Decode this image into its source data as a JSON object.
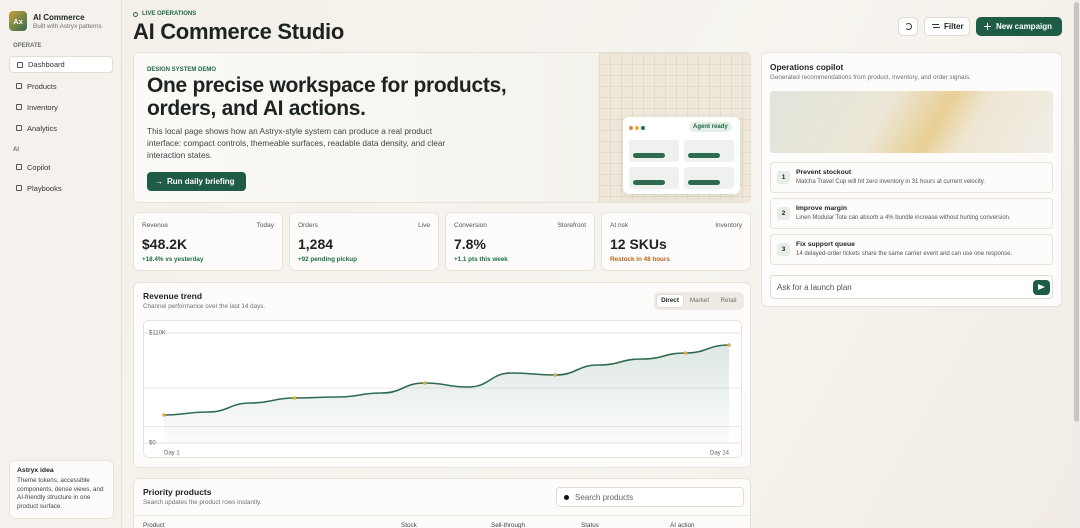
{
  "sidebar": {
    "logo": "Ax",
    "brand": "AI Commerce",
    "tagline": "Built with Astryx patterns",
    "sections": [
      {
        "heading": "OPERATE",
        "items": [
          "Dashboard",
          "Products",
          "Inventory",
          "Analytics"
        ]
      },
      {
        "heading": "AI",
        "items": [
          "Copilot",
          "Playbooks"
        ]
      }
    ],
    "note": {
      "title": "Astryx idea",
      "text": "Theme tokens, accessible components, dense views, and AI-friendly structure in one product surface."
    }
  },
  "header": {
    "eyebrow": "LIVE OPERATIONS",
    "title": "AI Commerce Studio",
    "filter": "Filter",
    "new_campaign": "New campaign"
  },
  "hero": {
    "eyebrow": "DESIGN SYSTEM DEMO",
    "title": "One precise workspace for products, orders, and AI actions.",
    "text": "This local page shows how an Astryx-style system can produce a real product interface: compact controls, themeable surfaces, readable data density, and clear interaction states.",
    "button": "Run daily briefing",
    "badge": "Agent ready"
  },
  "kpis": [
    {
      "label": "Revenue",
      "context": "Today",
      "value": "$48.2K",
      "delta": "+18.4% vs yesterday"
    },
    {
      "label": "Orders",
      "context": "Live",
      "value": "1,284",
      "delta": "+92 pending pickup"
    },
    {
      "label": "Conversion",
      "context": "Storefront",
      "value": "7.8%",
      "delta": "+1.1 pts this week"
    },
    {
      "label": "At risk",
      "context": "Inventory",
      "value": "12 SKUs",
      "delta": "Restock in 48 hours"
    }
  ],
  "chart_data": {
    "type": "line",
    "title": "Revenue trend",
    "subtitle": "Channel performance over the last 14 days.",
    "tabs": [
      "Direct",
      "Market",
      "Retail"
    ],
    "categories": [
      "Day 1",
      null,
      null,
      null,
      null,
      null,
      null,
      null,
      null,
      null,
      null,
      null,
      null,
      "Day 14"
    ],
    "series": [
      {
        "name": "Direct",
        "color": "#2f6b4f",
        "values": [
          28,
          31,
          40,
          45,
          46,
          50,
          60,
          56,
          70,
          68,
          78,
          84,
          90,
          98
        ]
      }
    ],
    "marker_color": "#e2a93b",
    "ylim": [
      0,
      110
    ],
    "yticks": [
      {
        "value": 0,
        "label": "$0"
      },
      {
        "value": 110,
        "label": "$110K"
      }
    ],
    "grid": true
  },
  "products": {
    "title": "Priority products",
    "subtitle": "Search updates the product rows instantly.",
    "search_placeholder": "Search products",
    "columns": [
      "Product",
      "Stock",
      "Sell-through",
      "Status",
      "AI action"
    ]
  },
  "copilot": {
    "title": "Operations copilot",
    "subtitle": "Generated recommendations from product, inventory, and order signals.",
    "recommendations": [
      {
        "number": "1",
        "title": "Prevent stockout",
        "text": "Matcha Travel Cup will hit zero inventory in 31 hours at current velocity."
      },
      {
        "number": "2",
        "title": "Improve margin",
        "text": "Linen Modular Tote can absorb a 4% bundle increase without hurting conversion."
      },
      {
        "number": "3",
        "title": "Fix support queue",
        "text": "14 delayed-order tickets share the same carrier event and can use one response."
      }
    ],
    "input_placeholder": "Ask for a launch plan"
  }
}
